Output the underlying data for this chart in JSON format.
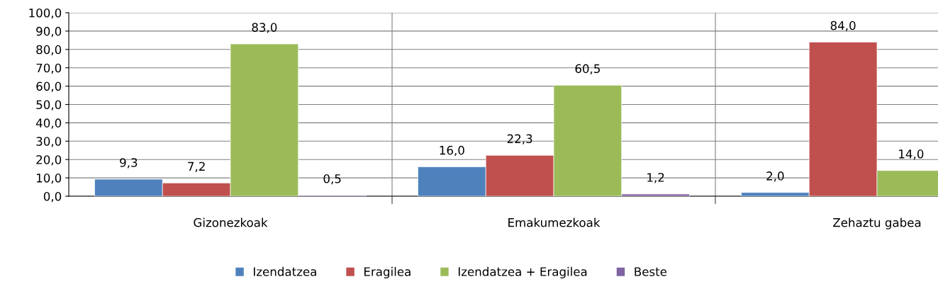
{
  "chart_data": {
    "type": "bar",
    "categories": [
      "Gizonezkoak",
      "Emakumezkoak",
      "Zehaztu gabea"
    ],
    "series": [
      {
        "name": "Izendatzea",
        "color": "#4f81bd",
        "values": [
          9.3,
          16.0,
          2.0
        ],
        "value_labels": [
          "9,3",
          "16,0",
          "2,0"
        ]
      },
      {
        "name": "Eragilea",
        "color": "#c0504d",
        "values": [
          7.2,
          22.3,
          84.0
        ],
        "value_labels": [
          "7,2",
          "22,3",
          "84,0"
        ]
      },
      {
        "name": "Izendatzea + Eragilea",
        "color": "#9bbb59",
        "values": [
          83.0,
          60.5,
          14.0
        ],
        "value_labels": [
          "83,0",
          "60,5",
          "14,0"
        ]
      },
      {
        "name": "Beste",
        "color": "#8064a2",
        "values": [
          0.5,
          1.2,
          null
        ],
        "value_labels": [
          "0,5",
          "1,2",
          null
        ]
      }
    ],
    "ylim": [
      0,
      100
    ],
    "yticks": [
      {
        "value": 0,
        "label": "0,0"
      },
      {
        "value": 10,
        "label": "10,0"
      },
      {
        "value": 20,
        "label": "20,0"
      },
      {
        "value": 30,
        "label": "30,0"
      },
      {
        "value": 40,
        "label": "40,0"
      },
      {
        "value": 50,
        "label": "50,0"
      },
      {
        "value": 60,
        "label": "60,0"
      },
      {
        "value": 70,
        "label": "70,0"
      },
      {
        "value": 80,
        "label": "80,0"
      },
      {
        "value": 90,
        "label": "90,0"
      },
      {
        "value": 100,
        "label": "100,0"
      }
    ],
    "grid": true,
    "legend": "bottom"
  }
}
